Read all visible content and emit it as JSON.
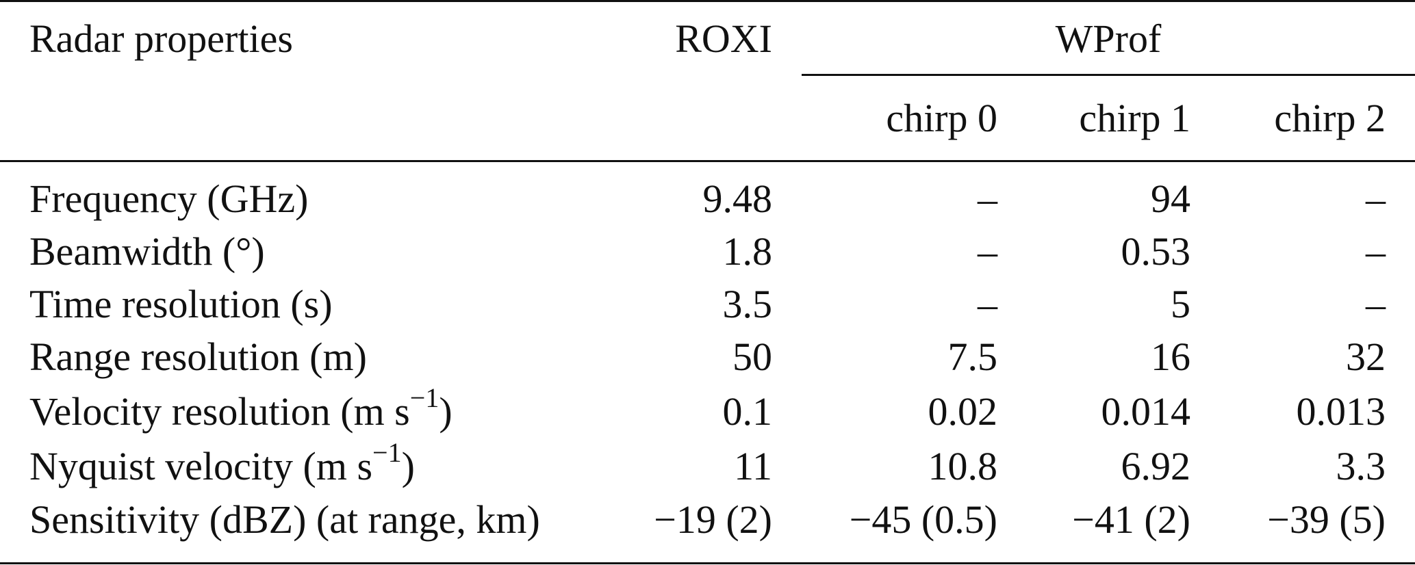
{
  "table": {
    "header": {
      "row_label": "Radar properties",
      "roxi": "ROXI",
      "wprof": "WProf",
      "chirps": [
        "chirp 0",
        "chirp 1",
        "chirp 2"
      ]
    },
    "rows": [
      {
        "label": "Frequency (GHz)",
        "roxi": "9.48",
        "chirp0": "–",
        "chirp1": "94",
        "chirp2": "–"
      },
      {
        "label": "Beamwidth (°)",
        "roxi": "1.8",
        "chirp0": "–",
        "chirp1": "0.53",
        "chirp2": "–"
      },
      {
        "label": "Time resolution (s)",
        "roxi": "3.5",
        "chirp0": "–",
        "chirp1": "5",
        "chirp2": "–"
      },
      {
        "label": "Range resolution (m)",
        "roxi": "50",
        "chirp0": "7.5",
        "chirp1": "16",
        "chirp2": "32"
      },
      {
        "label": "Velocity resolution (m s",
        "label_sup": "−1",
        "label_end": ")",
        "roxi": "0.1",
        "chirp0": "0.02",
        "chirp1": "0.014",
        "chirp2": "0.013"
      },
      {
        "label": "Nyquist velocity (m s",
        "label_sup": "−1",
        "label_end": ")",
        "roxi": "11",
        "chirp0": "10.8",
        "chirp1": "6.92",
        "chirp2": "3.3"
      },
      {
        "label": "Sensitivity (dBZ) (at range, km)",
        "roxi": "−19 (2)",
        "chirp0": "−45 (0.5)",
        "chirp1": "−41 (2)",
        "chirp2": "−39 (5)"
      }
    ]
  }
}
